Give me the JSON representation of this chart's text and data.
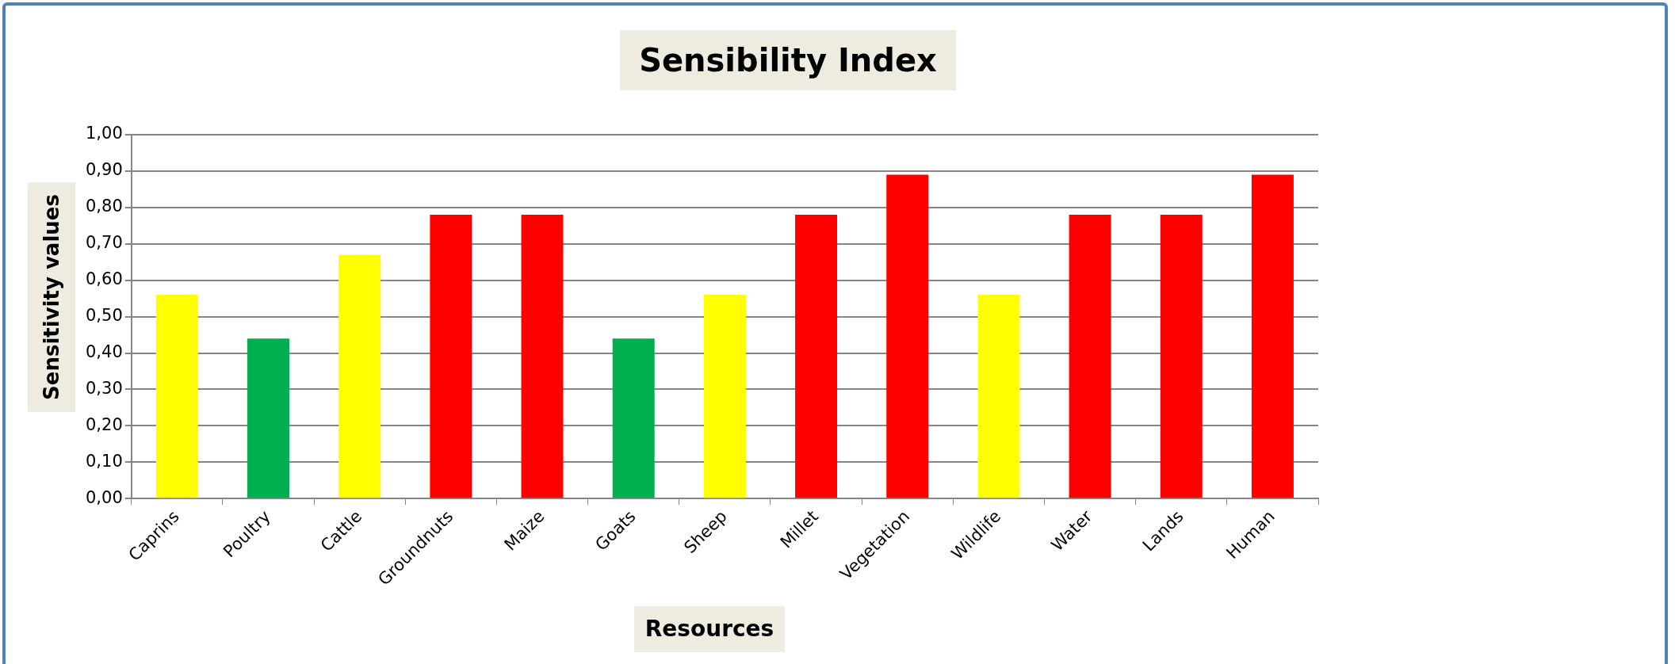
{
  "chart_data": {
    "type": "bar",
    "title": "Sensibility Index",
    "xlabel": "Resources",
    "ylabel": "Sensitivity values",
    "categories": [
      "Caprins",
      "Poultry",
      "Cattle",
      "Groundnuts",
      "Maize",
      "Goats",
      "Sheep",
      "Millet",
      "Vegetation",
      "Wildlife",
      "Water",
      "Lands",
      "Human"
    ],
    "values": [
      0.56,
      0.44,
      0.67,
      0.78,
      0.78,
      0.44,
      0.56,
      0.78,
      0.89,
      0.56,
      0.78,
      0.78,
      0.89
    ],
    "colors": [
      "#ffff00",
      "#00b050",
      "#ffff00",
      "#ff0000",
      "#ff0000",
      "#00b050",
      "#ffff00",
      "#ff0000",
      "#ff0000",
      "#ffff00",
      "#ff0000",
      "#ff0000",
      "#ff0000"
    ],
    "ylim": [
      0,
      1
    ],
    "yticks": [
      {
        "value": 0,
        "label": "0,00"
      },
      {
        "value": 0.1,
        "label": "0,10"
      },
      {
        "value": 0.2,
        "label": "0,20"
      },
      {
        "value": 0.3,
        "label": "0,30"
      },
      {
        "value": 0.4,
        "label": "0,40"
      },
      {
        "value": 0.5,
        "label": "0,50"
      },
      {
        "value": 0.6,
        "label": "0,60"
      },
      {
        "value": 0.7,
        "label": "0,70"
      },
      {
        "value": 0.8,
        "label": "0,80"
      },
      {
        "value": 0.9,
        "label": "0,90"
      },
      {
        "value": 1,
        "label": "1,00"
      }
    ],
    "grid": "y",
    "legend": false
  }
}
